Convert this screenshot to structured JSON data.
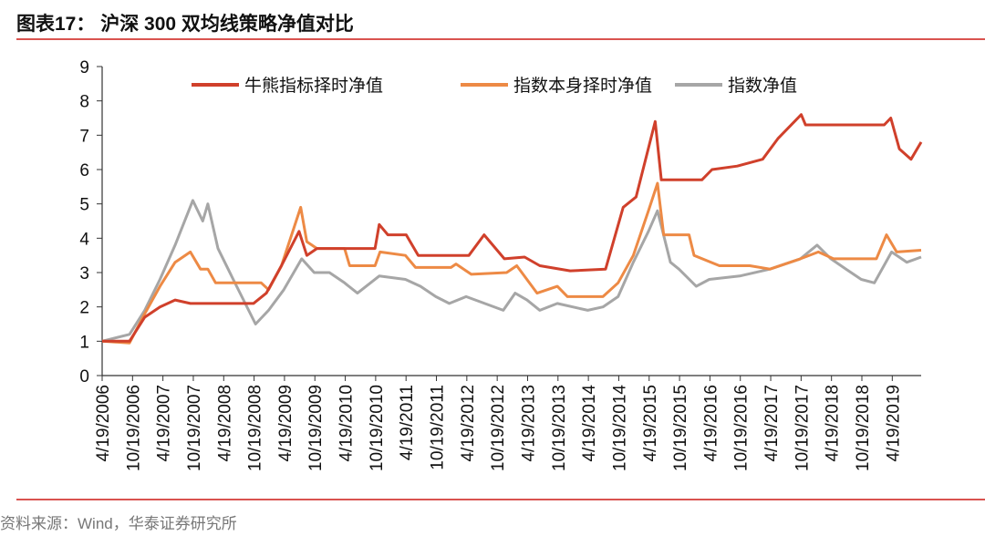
{
  "title": "图表17： 沪深 300 双均线策略净值对比",
  "source": "资料来源：Wind，华泰证券研究所",
  "chart_data": {
    "type": "line",
    "title": "图表17： 沪深 300 双均线策略净值对比",
    "xlabel": "",
    "ylabel": "",
    "ylim": [
      0,
      9
    ],
    "yticks": [
      "0",
      "1",
      "2",
      "3",
      "4",
      "5",
      "6",
      "7",
      "8",
      "9"
    ],
    "xlim": [
      "2006-04-19",
      "2019-10-10"
    ],
    "xticks": [
      "4/19/2006",
      "10/19/2006",
      "4/19/2007",
      "10/19/2007",
      "4/19/2008",
      "10/19/2008",
      "4/19/2009",
      "10/19/2009",
      "4/19/2010",
      "10/19/2010",
      "4/19/2011",
      "10/19/2011",
      "4/19/2012",
      "10/19/2012",
      "4/19/2013",
      "10/19/2013",
      "4/19/2014",
      "10/19/2014",
      "4/19/2015",
      "10/19/2015",
      "4/19/2016",
      "10/19/2016",
      "4/19/2017",
      "10/19/2017",
      "4/19/2018",
      "10/19/2018",
      "4/19/2019"
    ],
    "grid": false,
    "legend_position": "top",
    "series": [
      {
        "name": "牛熊指标择时净值",
        "color": "#d0402b",
        "points": [
          [
            "2006-04-19",
            1.0
          ],
          [
            "2006-10-01",
            1.0
          ],
          [
            "2007-01-01",
            1.7
          ],
          [
            "2007-04-01",
            2.0
          ],
          [
            "2007-07-01",
            2.2
          ],
          [
            "2007-10-01",
            2.1
          ],
          [
            "2008-01-01",
            2.1
          ],
          [
            "2008-10-15",
            2.1
          ],
          [
            "2009-01-01",
            2.4
          ],
          [
            "2009-04-01",
            3.2
          ],
          [
            "2009-07-15",
            4.2
          ],
          [
            "2009-09-01",
            3.5
          ],
          [
            "2009-11-01",
            3.7
          ],
          [
            "2010-10-15",
            3.7
          ],
          [
            "2010-11-10",
            4.4
          ],
          [
            "2011-01-01",
            4.1
          ],
          [
            "2011-04-20",
            4.1
          ],
          [
            "2011-07-01",
            3.5
          ],
          [
            "2012-05-01",
            3.5
          ],
          [
            "2012-08-01",
            4.1
          ],
          [
            "2012-12-01",
            3.4
          ],
          [
            "2013-04-01",
            3.45
          ],
          [
            "2013-07-01",
            3.2
          ],
          [
            "2014-01-01",
            3.05
          ],
          [
            "2014-08-01",
            3.1
          ],
          [
            "2014-11-15",
            4.9
          ],
          [
            "2015-02-01",
            5.2
          ],
          [
            "2015-05-25",
            7.4
          ],
          [
            "2015-07-01",
            5.7
          ],
          [
            "2016-03-01",
            5.7
          ],
          [
            "2016-05-01",
            6.0
          ],
          [
            "2016-10-01",
            6.1
          ],
          [
            "2017-03-01",
            6.3
          ],
          [
            "2017-06-01",
            6.9
          ],
          [
            "2017-10-20",
            7.6
          ],
          [
            "2017-11-15",
            7.3
          ],
          [
            "2019-03-01",
            7.3
          ],
          [
            "2019-04-10",
            7.5
          ],
          [
            "2019-06-01",
            6.6
          ],
          [
            "2019-08-10",
            6.3
          ],
          [
            "2019-10-10",
            6.8
          ]
        ]
      },
      {
        "name": "指数本身择时净值",
        "color": "#ed8a45",
        "points": [
          [
            "2006-04-19",
            1.0
          ],
          [
            "2006-10-01",
            0.95
          ],
          [
            "2007-01-01",
            1.8
          ],
          [
            "2007-04-01",
            2.6
          ],
          [
            "2007-07-01",
            3.3
          ],
          [
            "2007-10-01",
            3.6
          ],
          [
            "2007-12-01",
            3.1
          ],
          [
            "2008-01-15",
            3.1
          ],
          [
            "2008-03-01",
            2.7
          ],
          [
            "2008-12-01",
            2.7
          ],
          [
            "2009-01-15",
            2.5
          ],
          [
            "2009-04-01",
            3.2
          ],
          [
            "2009-07-25",
            4.9
          ],
          [
            "2009-09-01",
            3.9
          ],
          [
            "2009-11-01",
            3.7
          ],
          [
            "2010-04-15",
            3.7
          ],
          [
            "2010-05-15",
            3.2
          ],
          [
            "2010-10-15",
            3.2
          ],
          [
            "2010-11-15",
            3.6
          ],
          [
            "2011-04-15",
            3.5
          ],
          [
            "2011-06-15",
            3.15
          ],
          [
            "2012-01-15",
            3.15
          ],
          [
            "2012-02-15",
            3.25
          ],
          [
            "2012-05-15",
            2.95
          ],
          [
            "2012-12-15",
            3.0
          ],
          [
            "2013-02-15",
            3.2
          ],
          [
            "2013-06-15",
            2.4
          ],
          [
            "2013-10-15",
            2.6
          ],
          [
            "2013-12-15",
            2.3
          ],
          [
            "2014-07-15",
            2.3
          ],
          [
            "2014-10-15",
            2.7
          ],
          [
            "2015-01-15",
            3.5
          ],
          [
            "2015-04-15",
            4.8
          ],
          [
            "2015-06-08",
            5.6
          ],
          [
            "2015-07-15",
            4.1
          ],
          [
            "2015-12-15",
            4.1
          ],
          [
            "2016-01-15",
            3.5
          ],
          [
            "2016-06-15",
            3.2
          ],
          [
            "2016-12-15",
            3.2
          ],
          [
            "2017-04-15",
            3.1
          ],
          [
            "2017-10-15",
            3.4
          ],
          [
            "2018-02-01",
            3.6
          ],
          [
            "2018-05-01",
            3.4
          ],
          [
            "2019-01-15",
            3.4
          ],
          [
            "2019-03-15",
            4.1
          ],
          [
            "2019-05-15",
            3.6
          ],
          [
            "2019-10-10",
            3.65
          ]
        ]
      },
      {
        "name": "指数净值",
        "color": "#a6a6a6",
        "points": [
          [
            "2006-04-19",
            1.0
          ],
          [
            "2006-10-01",
            1.2
          ],
          [
            "2007-01-01",
            1.9
          ],
          [
            "2007-04-01",
            2.8
          ],
          [
            "2007-07-01",
            3.8
          ],
          [
            "2007-10-16",
            5.1
          ],
          [
            "2007-12-15",
            4.5
          ],
          [
            "2008-01-15",
            5.0
          ],
          [
            "2008-03-15",
            3.7
          ],
          [
            "2008-06-15",
            2.8
          ],
          [
            "2008-10-28",
            1.5
          ],
          [
            "2009-01-15",
            1.9
          ],
          [
            "2009-04-15",
            2.5
          ],
          [
            "2009-08-01",
            3.4
          ],
          [
            "2009-10-15",
            3.0
          ],
          [
            "2010-01-15",
            3.0
          ],
          [
            "2010-04-15",
            2.7
          ],
          [
            "2010-07-01",
            2.4
          ],
          [
            "2010-11-10",
            2.9
          ],
          [
            "2011-04-15",
            2.8
          ],
          [
            "2011-07-15",
            2.6
          ],
          [
            "2011-10-15",
            2.3
          ],
          [
            "2012-01-05",
            2.1
          ],
          [
            "2012-04-15",
            2.3
          ],
          [
            "2012-11-25",
            1.9
          ],
          [
            "2013-02-05",
            2.4
          ],
          [
            "2013-04-15",
            2.2
          ],
          [
            "2013-07-01",
            1.9
          ],
          [
            "2013-10-15",
            2.1
          ],
          [
            "2014-04-15",
            1.9
          ],
          [
            "2014-07-15",
            2.0
          ],
          [
            "2014-10-15",
            2.3
          ],
          [
            "2015-01-15",
            3.3
          ],
          [
            "2015-04-15",
            4.2
          ],
          [
            "2015-06-08",
            4.8
          ],
          [
            "2015-08-25",
            3.3
          ],
          [
            "2015-10-15",
            3.1
          ],
          [
            "2016-01-28",
            2.6
          ],
          [
            "2016-04-15",
            2.8
          ],
          [
            "2016-10-15",
            2.9
          ],
          [
            "2017-04-15",
            3.1
          ],
          [
            "2017-10-15",
            3.4
          ],
          [
            "2018-01-24",
            3.8
          ],
          [
            "2018-04-15",
            3.4
          ],
          [
            "2018-07-15",
            3.1
          ],
          [
            "2018-10-15",
            2.8
          ],
          [
            "2019-01-03",
            2.7
          ],
          [
            "2019-04-15",
            3.6
          ],
          [
            "2019-07-15",
            3.3
          ],
          [
            "2019-10-10",
            3.45
          ]
        ]
      }
    ]
  }
}
